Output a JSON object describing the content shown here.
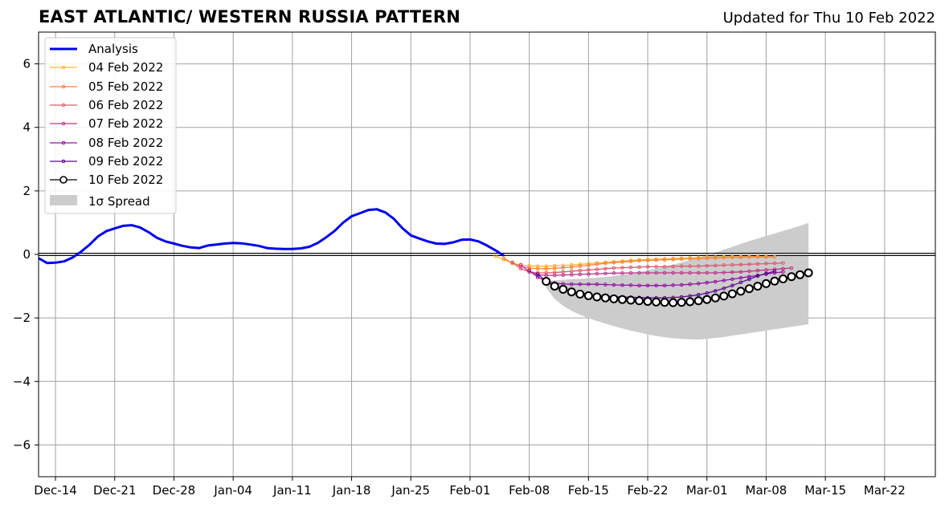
{
  "title": "EAST ATLANTIC/ WESTERN RUSSIA PATTERN",
  "updated": "Updated for Thu 10 Feb 2022",
  "chart_data": {
    "type": "line",
    "title": "EAST ATLANTIC/ WESTERN RUSSIA PATTERN",
    "subtitle": "Updated for Thu 10 Feb 2022",
    "xlim": [
      "2021-12-12",
      "2022-03-28"
    ],
    "ylim": [
      -7,
      7
    ],
    "grid": true,
    "legend_position": "top-left",
    "x_ticks": [
      {
        "date": "2021-12-14",
        "label": "Dec-14"
      },
      {
        "date": "2021-12-21",
        "label": "Dec-21"
      },
      {
        "date": "2021-12-28",
        "label": "Dec-28"
      },
      {
        "date": "2022-01-04",
        "label": "Jan-04"
      },
      {
        "date": "2022-01-11",
        "label": "Jan-11"
      },
      {
        "date": "2022-01-18",
        "label": "Jan-18"
      },
      {
        "date": "2022-01-25",
        "label": "Jan-25"
      },
      {
        "date": "2022-02-01",
        "label": "Feb-01"
      },
      {
        "date": "2022-02-08",
        "label": "Feb-08"
      },
      {
        "date": "2022-02-15",
        "label": "Feb-15"
      },
      {
        "date": "2022-02-22",
        "label": "Feb-22"
      },
      {
        "date": "2022-03-01",
        "label": "Mar-01"
      },
      {
        "date": "2022-03-08",
        "label": "Mar-08"
      },
      {
        "date": "2022-03-15",
        "label": "Mar-15"
      },
      {
        "date": "2022-03-22",
        "label": "Mar-22"
      }
    ],
    "y_ticks": [
      {
        "value": 6,
        "label": "6"
      },
      {
        "value": 4,
        "label": "4"
      },
      {
        "value": 2,
        "label": "2"
      },
      {
        "value": 0,
        "label": "0"
      },
      {
        "value": -2,
        "label": "−2"
      },
      {
        "value": -4,
        "label": "−4"
      },
      {
        "value": -6,
        "label": "−6"
      }
    ],
    "analysis": {
      "name": "Analysis",
      "color": "#0000ee",
      "start": "2021-12-12",
      "values": [
        -0.12,
        -0.27,
        -0.26,
        -0.22,
        -0.1,
        0.08,
        0.3,
        0.56,
        0.73,
        0.82,
        0.9,
        0.92,
        0.85,
        0.7,
        0.52,
        0.41,
        0.34,
        0.27,
        0.22,
        0.2,
        0.28,
        0.31,
        0.34,
        0.36,
        0.35,
        0.31,
        0.27,
        0.2,
        0.18,
        0.17,
        0.17,
        0.19,
        0.24,
        0.36,
        0.54,
        0.74,
        1.0,
        1.2,
        1.3,
        1.4,
        1.42,
        1.32,
        1.12,
        0.83,
        0.6,
        0.5,
        0.41,
        0.34,
        0.33,
        0.38,
        0.46,
        0.47,
        0.41,
        0.28,
        0.13,
        -0.04
      ]
    },
    "forecasts": [
      {
        "name": "04 Feb 2022",
        "color": "#fbb531",
        "start": "2022-02-04",
        "values": [
          -0.05,
          -0.17,
          -0.27,
          -0.33,
          -0.36,
          -0.37,
          -0.37,
          -0.36,
          -0.35,
          -0.33,
          -0.31,
          -0.29,
          -0.27,
          -0.25,
          -0.23,
          -0.21,
          -0.19,
          -0.17,
          -0.16,
          -0.15,
          -0.14,
          -0.13,
          -0.12,
          -0.11,
          -0.1,
          -0.09,
          -0.09,
          -0.08,
          -0.08,
          -0.08,
          -0.07,
          -0.07,
          -0.07
        ]
      },
      {
        "name": "05 Feb 2022",
        "color": "#f1843d",
        "start": "2022-02-05",
        "values": [
          -0.12,
          -0.28,
          -0.38,
          -0.43,
          -0.45,
          -0.45,
          -0.44,
          -0.42,
          -0.4,
          -0.37,
          -0.34,
          -0.31,
          -0.28,
          -0.26,
          -0.24,
          -0.22,
          -0.2,
          -0.19,
          -0.18,
          -0.17,
          -0.16,
          -0.15,
          -0.14,
          -0.13,
          -0.12,
          -0.11,
          -0.1,
          -0.09,
          -0.09,
          -0.08,
          -0.08,
          -0.08,
          -0.08
        ]
      },
      {
        "name": "06 Feb 2022",
        "color": "#dd5a6e",
        "start": "2022-02-06",
        "values": [
          -0.25,
          -0.45,
          -0.55,
          -0.58,
          -0.58,
          -0.57,
          -0.55,
          -0.53,
          -0.51,
          -0.49,
          -0.47,
          -0.45,
          -0.43,
          -0.42,
          -0.41,
          -0.4,
          -0.39,
          -0.39,
          -0.39,
          -0.38,
          -0.37,
          -0.37,
          -0.37,
          -0.36,
          -0.35,
          -0.34,
          -0.33,
          -0.32,
          -0.31,
          -0.3,
          -0.29,
          -0.28,
          -0.27
        ]
      },
      {
        "name": "07 Feb 2022",
        "color": "#bc3689",
        "start": "2022-02-07",
        "values": [
          -0.33,
          -0.55,
          -0.64,
          -0.66,
          -0.66,
          -0.65,
          -0.64,
          -0.63,
          -0.62,
          -0.61,
          -0.6,
          -0.59,
          -0.59,
          -0.58,
          -0.58,
          -0.58,
          -0.58,
          -0.58,
          -0.58,
          -0.58,
          -0.58,
          -0.58,
          -0.58,
          -0.58,
          -0.57,
          -0.56,
          -0.55,
          -0.53,
          -0.51,
          -0.49,
          -0.47,
          -0.45,
          -0.43
        ]
      },
      {
        "name": "08 Feb 2022",
        "color": "#9016a0",
        "start": "2022-02-08",
        "values": [
          -0.5,
          -0.72,
          -0.84,
          -0.9,
          -0.93,
          -0.94,
          -0.94,
          -0.94,
          -0.94,
          -0.95,
          -0.96,
          -0.97,
          -0.97,
          -0.98,
          -0.98,
          -0.98,
          -0.98,
          -0.97,
          -0.96,
          -0.94,
          -0.92,
          -0.89,
          -0.86,
          -0.82,
          -0.78,
          -0.74,
          -0.7,
          -0.66,
          -0.62,
          -0.58,
          -0.55
        ]
      },
      {
        "name": "09 Feb 2022",
        "color": "#5a0c8c",
        "start": "2022-02-09",
        "values": [
          -0.62,
          -0.85,
          -1.0,
          -1.1,
          -1.17,
          -1.22,
          -1.26,
          -1.29,
          -1.31,
          -1.33,
          -1.34,
          -1.35,
          -1.36,
          -1.37,
          -1.37,
          -1.37,
          -1.36,
          -1.34,
          -1.31,
          -1.27,
          -1.22,
          -1.15,
          -1.07,
          -0.98,
          -0.88,
          -0.78,
          -0.68,
          -0.6,
          -0.53
        ]
      },
      {
        "name": "10 Feb 2022",
        "color": "#000000",
        "start": "2022-02-10",
        "values": [
          -0.85,
          -1.0,
          -1.1,
          -1.18,
          -1.25,
          -1.3,
          -1.34,
          -1.37,
          -1.4,
          -1.42,
          -1.44,
          -1.46,
          -1.48,
          -1.5,
          -1.51,
          -1.52,
          -1.51,
          -1.49,
          -1.46,
          -1.42,
          -1.37,
          -1.31,
          -1.24,
          -1.16,
          -1.08,
          -1.0,
          -0.92,
          -0.84,
          -0.77,
          -0.7,
          -0.64,
          -0.58
        ]
      }
    ],
    "spread": {
      "name": "1σ Spread",
      "color": "#cccccc",
      "start": "2022-02-10",
      "upper": [
        -0.85,
        -0.82,
        -0.8,
        -0.78,
        -0.77,
        -0.75,
        -0.73,
        -0.71,
        -0.68,
        -0.64,
        -0.6,
        -0.55,
        -0.5,
        -0.44,
        -0.38,
        -0.32,
        -0.25,
        -0.18,
        -0.1,
        -0.02,
        0.06,
        0.15,
        0.24,
        0.33,
        0.42,
        0.5,
        0.58,
        0.66,
        0.74,
        0.82,
        0.9,
        0.99
      ],
      "lower": [
        -1.05,
        -1.4,
        -1.62,
        -1.78,
        -1.9,
        -2.0,
        -2.1,
        -2.18,
        -2.26,
        -2.33,
        -2.4,
        -2.46,
        -2.52,
        -2.57,
        -2.61,
        -2.64,
        -2.66,
        -2.67,
        -2.68,
        -2.66,
        -2.63,
        -2.6,
        -2.56,
        -2.52,
        -2.48,
        -2.44,
        -2.4,
        -2.36,
        -2.32,
        -2.28,
        -2.24,
        -2.2
      ]
    }
  },
  "legend": {
    "analysis": "Analysis",
    "f1": "04 Feb 2022",
    "f2": "05 Feb 2022",
    "f3": "06 Feb 2022",
    "f4": "07 Feb 2022",
    "f5": "08 Feb 2022",
    "f6": "09 Feb 2022",
    "f7": "10 Feb 2022",
    "spread": "1σ Spread"
  }
}
